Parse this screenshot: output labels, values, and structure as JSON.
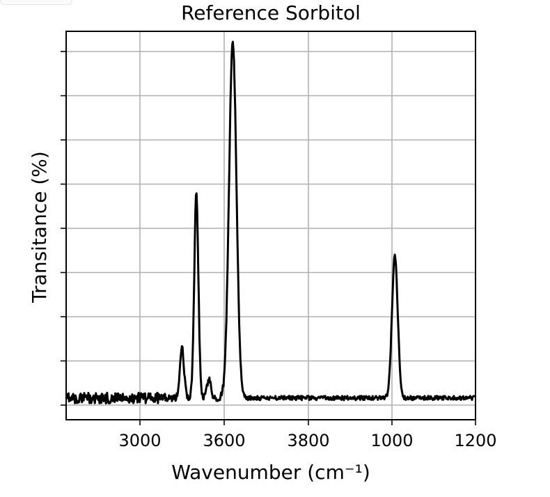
{
  "chart_data": {
    "type": "line",
    "title": "Reference  Sorbitol",
    "xlabel": "Wavenumber (cm⁻¹)",
    "ylabel": "Transitance (%)",
    "x_tick_labels": [
      "3000",
      "3600",
      "3800",
      "1000",
      "1200"
    ],
    "y_tick_count": 9,
    "grid": true,
    "line_color": "#000000",
    "grid_color": "#b0b0b0",
    "series": [
      {
        "peaks": [
          {
            "position": 0.283,
            "height": 0.14,
            "width": 0.005
          },
          {
            "position": 0.318,
            "height": 0.58,
            "width": 0.005
          },
          {
            "position": 0.349,
            "height": 0.05,
            "width": 0.005
          },
          {
            "position": 0.407,
            "height": 1.0,
            "width": 0.009
          },
          {
            "position": 0.803,
            "height": 0.4,
            "width": 0.007
          }
        ],
        "baseline": 0.02
      }
    ]
  }
}
